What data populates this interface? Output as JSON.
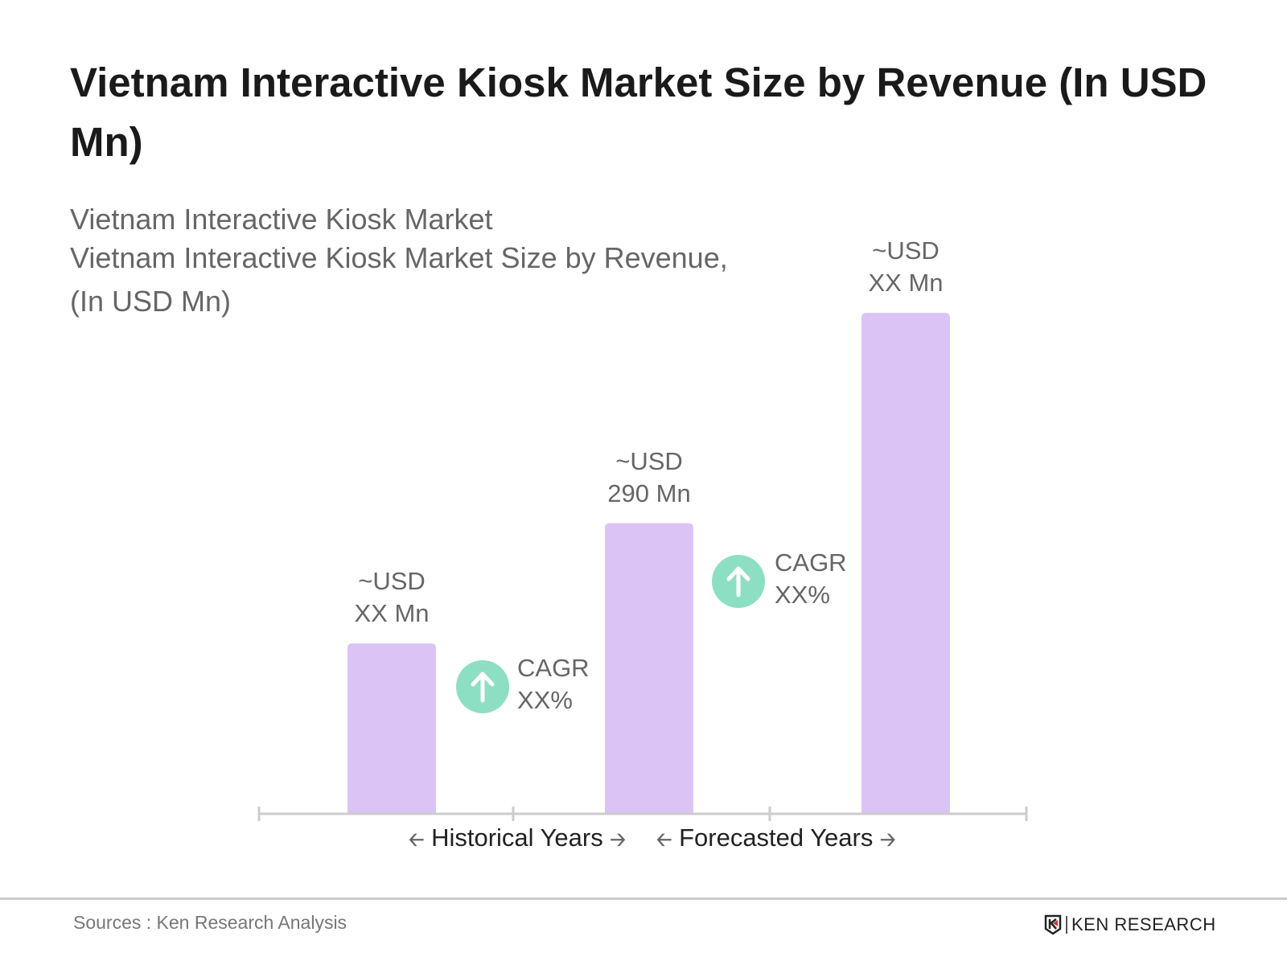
{
  "chart_data": {
    "type": "bar",
    "title": "Vietnam Interactive Kiosk Market Size by Revenue (In USD Mn)",
    "subtitle": [
      "Vietnam Interactive Kiosk Market",
      "Vietnam Interactive Kiosk Market Size by Revenue,",
      "(In USD Mn)"
    ],
    "categories": [
      "",
      "",
      ""
    ],
    "values": [
      170,
      290,
      500
    ],
    "value_labels": [
      {
        "line1": "~USD",
        "line2": "XX Mn"
      },
      {
        "line1": "~USD",
        "line2": "290 Mn"
      },
      {
        "line1": "~USD",
        "line2": "XX Mn"
      }
    ],
    "cagr": [
      {
        "label": "CAGR",
        "value": "XX%"
      },
      {
        "label": "CAGR",
        "value": "XX%"
      }
    ],
    "x_periods": [
      "Historical Years",
      "Forecasted Years"
    ],
    "grid": false,
    "colors": {
      "bar": "#dcc3f5",
      "cagr_icon": "#8ddfc4",
      "axis": "#cccccc"
    }
  },
  "footer": {
    "source": "Sources : Ken Research Analysis",
    "logo": "KEN RESEARCH"
  }
}
